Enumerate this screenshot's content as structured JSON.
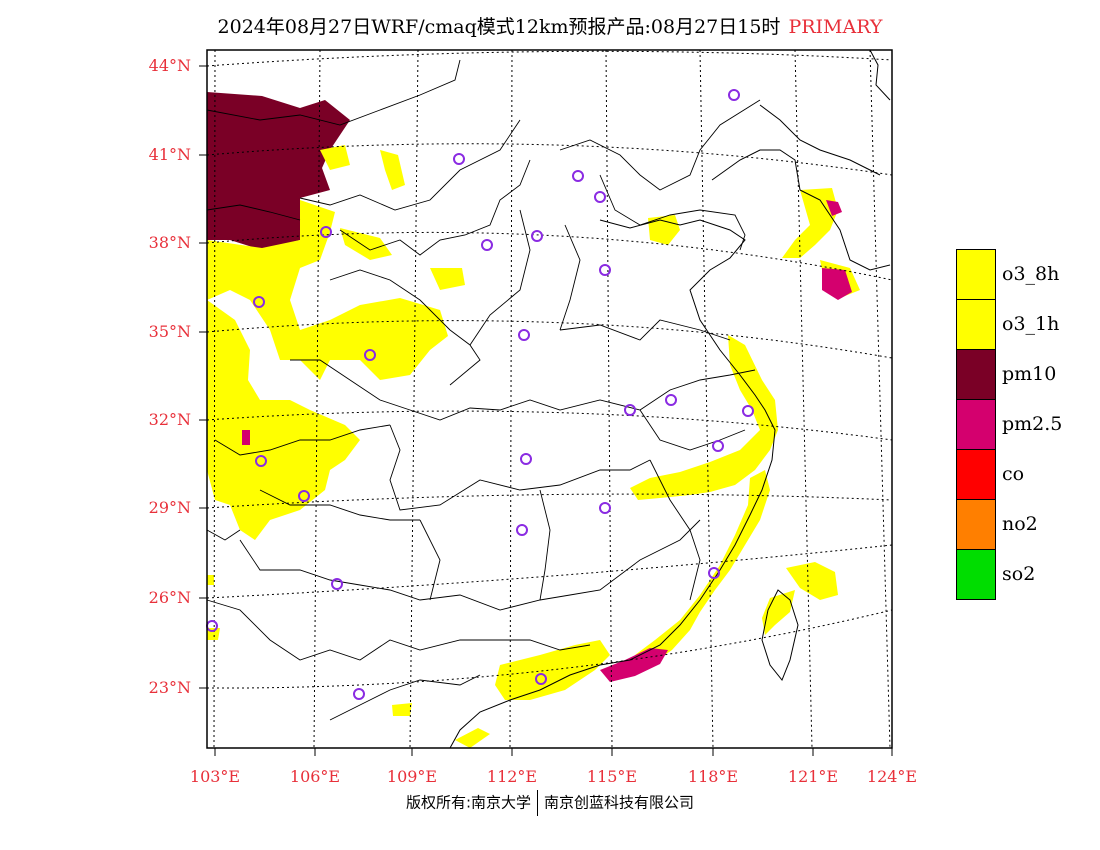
{
  "header": {
    "title": "2024年08月27日WRF/cmaq模式12km预报产品:08月27日15时",
    "tag": "PRIMARY"
  },
  "footer": {
    "left": "版权所有:南京大学",
    "right": "南京创蓝科技有限公司"
  },
  "map": {
    "lat_labels": [
      "44°N",
      "41°N",
      "38°N",
      "35°N",
      "32°N",
      "29°N",
      "26°N",
      "23°N"
    ],
    "lon_labels": [
      "103°E",
      "106°E",
      "109°E",
      "112°E",
      "115°E",
      "118°E",
      "121°E",
      "124°E"
    ],
    "lon_range": [
      103,
      124
    ],
    "lat_range": [
      21,
      44.5
    ]
  },
  "legend": {
    "items": [
      {
        "label": "o3_8h",
        "color": "#ffff00"
      },
      {
        "label": "o3_1h",
        "color": "#ffff00"
      },
      {
        "label": "pm10",
        "color": "#7a0026"
      },
      {
        "label": "pm2.5",
        "color": "#d4006e"
      },
      {
        "label": "co",
        "color": "#ff0000"
      },
      {
        "label": "no2",
        "color": "#ff7f00"
      },
      {
        "label": "so2",
        "color": "#00dd00"
      }
    ]
  },
  "colors": {
    "o3": "#ffff00",
    "pm10": "#7a0026",
    "pm25": "#d4006e",
    "station": "#8a2be2",
    "tick": "#e8303a"
  }
}
